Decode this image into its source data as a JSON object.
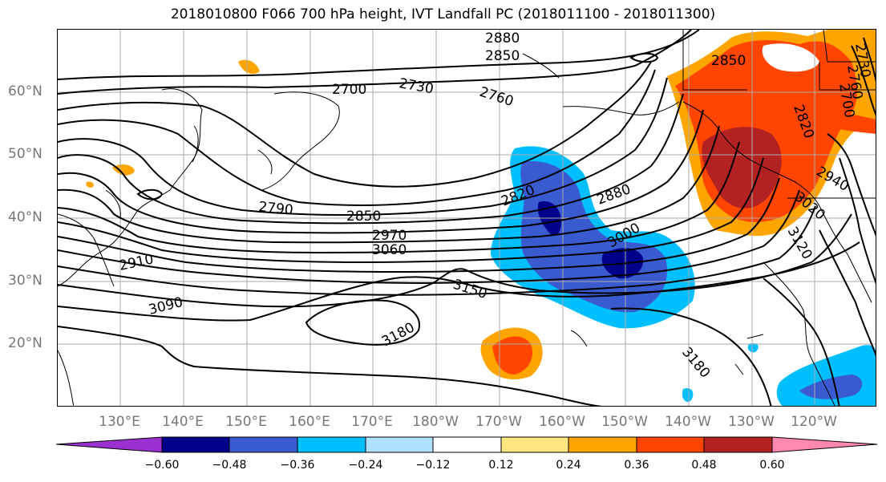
{
  "title": "2018010800 F066 700 hPa height, IVT Landfall PC (2018011100 - 2018011300)",
  "map": {
    "latitude_labels": [
      "60°N",
      "50°N",
      "40°N",
      "30°N",
      "20°N"
    ],
    "longitude_labels": [
      "130°E",
      "140°E",
      "150°E",
      "160°E",
      "170°E",
      "180°W",
      "170°W",
      "160°W",
      "150°W",
      "140°W",
      "130°W",
      "120°W"
    ],
    "contour_labels": [
      "2880",
      "2850",
      "2700",
      "2730",
      "2760",
      "2820",
      "2790",
      "2850",
      "2970",
      "3060",
      "3000",
      "2880",
      "2820",
      "3150",
      "3090",
      "2910",
      "3180",
      "3180",
      "2940",
      "3020",
      "3120",
      "2850",
      "2760",
      "2730",
      "2700"
    ],
    "contour_color": "#000000",
    "coastline_color": "#000000",
    "gridline_color": "#aaaaaa"
  },
  "colorbar": {
    "tick_labels": [
      "−0.60",
      "−0.48",
      "−0.36",
      "−0.24",
      "−0.12",
      "0.12",
      "0.24",
      "0.36",
      "0.48",
      "0.60"
    ],
    "colors": [
      "#9b30d0",
      "#00008b",
      "#3a5bd0",
      "#00bfff",
      "#b0e2ff",
      "#ffffff",
      "#ffe680",
      "#ffa500",
      "#ff4500",
      "#b22222",
      "#ff88b0"
    ],
    "extend": "both"
  }
}
